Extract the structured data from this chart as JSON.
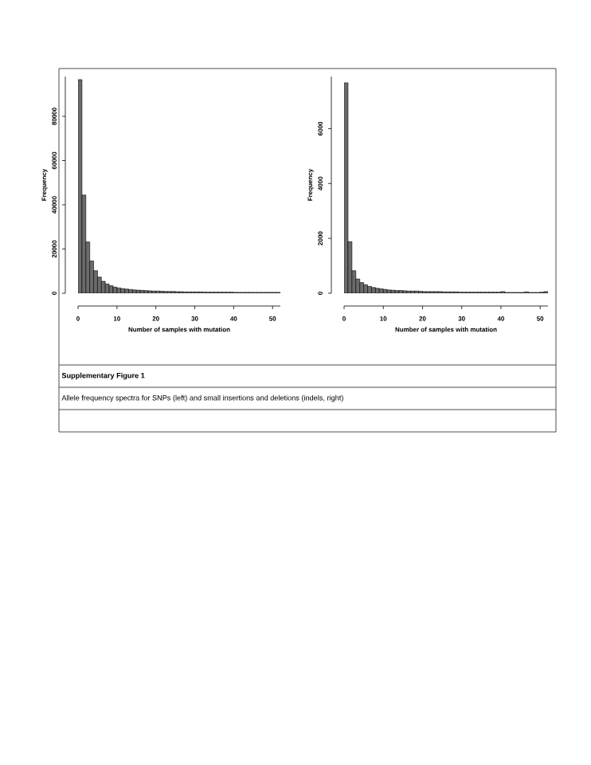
{
  "chart_data": [
    {
      "type": "histogram",
      "xlabel": "Number of samples with mutation",
      "ylabel": "Frequency",
      "color": "#6b6b6b",
      "bins": [
        0,
        1,
        2,
        3,
        4,
        5,
        6,
        7,
        8,
        9,
        10,
        11,
        12,
        13,
        14,
        15,
        16,
        17,
        18,
        19,
        20,
        21,
        22,
        23,
        24,
        25,
        26,
        27,
        28,
        29,
        30,
        31,
        32,
        33,
        34,
        35,
        36,
        37,
        38,
        39,
        40,
        41,
        42,
        43,
        44,
        45,
        46,
        47,
        48,
        49,
        50,
        51,
        52
      ],
      "values": [
        96600,
        44400,
        23200,
        14600,
        10200,
        7300,
        5400,
        4200,
        3400,
        2800,
        2400,
        2100,
        1900,
        1700,
        1500,
        1400,
        1300,
        1200,
        1100,
        1000,
        1000,
        900,
        800,
        800,
        800,
        700,
        700,
        600,
        600,
        600,
        600,
        600,
        500,
        500,
        500,
        500,
        500,
        500,
        500,
        500,
        400,
        400,
        400,
        400,
        400,
        400,
        400,
        400,
        400,
        400,
        400,
        400
      ],
      "xlim": [
        0,
        52
      ],
      "ylim": [
        0,
        98000
      ],
      "xticks": [
        0,
        10,
        20,
        30,
        40,
        50
      ],
      "yticks": [
        0,
        20000,
        40000,
        60000,
        80000
      ],
      "annotations": [
        "Supplementary Figure 1",
        "Allele frequency spectra for SNPs (left) and small insertions and deletions (indels, right)"
      ]
    },
    {
      "type": "histogram",
      "xlabel": "Number of samples with mutation",
      "ylabel": "Frequency",
      "color": "#6b6b6b",
      "bins": [
        0,
        1,
        2,
        3,
        4,
        5,
        6,
        7,
        8,
        9,
        10,
        11,
        12,
        13,
        14,
        15,
        16,
        17,
        18,
        19,
        20,
        21,
        22,
        23,
        24,
        25,
        26,
        27,
        28,
        29,
        30,
        31,
        32,
        33,
        34,
        35,
        36,
        37,
        38,
        39,
        40,
        41,
        42,
        43,
        44,
        45,
        46,
        47,
        48,
        49,
        50,
        51,
        52
      ],
      "values": [
        7670,
        1880,
        820,
        520,
        390,
        310,
        250,
        210,
        180,
        160,
        140,
        120,
        110,
        100,
        100,
        90,
        80,
        80,
        80,
        70,
        60,
        60,
        60,
        60,
        60,
        50,
        50,
        50,
        50,
        40,
        40,
        40,
        40,
        40,
        40,
        40,
        40,
        40,
        40,
        40,
        60,
        30,
        30,
        30,
        30,
        30,
        50,
        30,
        30,
        30,
        40,
        60
      ],
      "xlim": [
        0,
        52
      ],
      "ylim": [
        0,
        7900
      ],
      "xticks": [
        0,
        10,
        20,
        30,
        40,
        50
      ],
      "yticks": [
        0,
        2000,
        4000,
        6000
      ]
    }
  ]
}
